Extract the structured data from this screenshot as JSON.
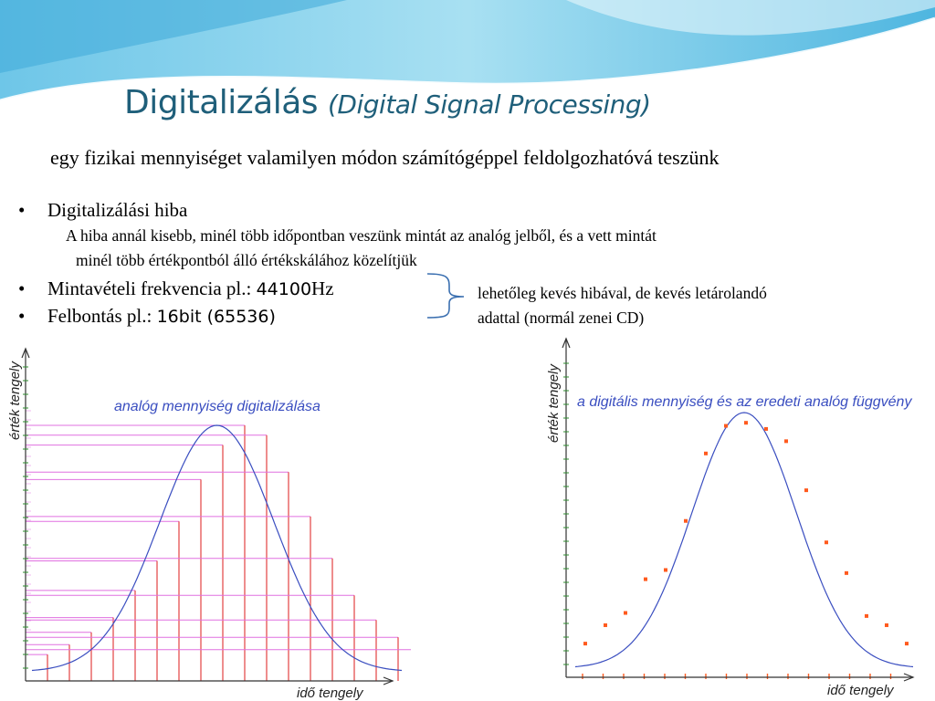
{
  "header": {
    "title": "Digitalizálás",
    "title_paren_open": "(",
    "title_sub": "Digital Signal Processing)"
  },
  "subtitle": "egy fizikai mennyiséget valamilyen módon számítógéppel feldolgozhatóvá teszünk",
  "bullets": {
    "marker": "•",
    "b1": {
      "label": "Digitalizálási hiba"
    },
    "b1_detail_1": "A hiba annál kisebb, minél több időpontban veszünk mintát az analóg jelből, és a vett mintát",
    "b1_detail_2": "minél több értékpontból álló értékskálához közelítjük",
    "b2": {
      "text": "Mintavételi frekvencia  pl.: ",
      "value": "44100",
      "unit": "Hz"
    },
    "b3": {
      "text": "Felbontás pl.: ",
      "value": "16bit (65536)"
    }
  },
  "note": {
    "line1": "lehetőleg kevés hibával, de kevés letárolandó",
    "line2": "adattal (normál zenei CD)"
  },
  "charts": {
    "left": {
      "title": "analóg mennyiség digitalizálása",
      "xlabel": "idő tengely",
      "ylabel": "érték tengely",
      "curve_color": "#3a4ec0",
      "sample_color": "#e03030",
      "level_color": "#e070e0"
    },
    "right": {
      "title": "a digitális mennyiség és az eredeti analóg függvény",
      "xlabel": "idő tengely",
      "ylabel": "érték tengely",
      "curve_color": "#3a4ec0",
      "point_color": "#ff5a1e"
    }
  },
  "chart_data": [
    {
      "type": "line",
      "title": "analóg mennyiség digitalizálása",
      "xlabel": "idő tengely",
      "ylabel": "érték tengely",
      "x": [
        0,
        1,
        2,
        3,
        4,
        5,
        6,
        7,
        8,
        9,
        10,
        11,
        12,
        13,
        14,
        15,
        16,
        17
      ],
      "values": [
        0.07,
        0.11,
        0.16,
        0.22,
        0.33,
        0.45,
        0.61,
        0.78,
        0.92,
        1.0,
        0.96,
        0.81,
        0.63,
        0.46,
        0.31,
        0.21,
        0.14,
        0.09
      ]
    },
    {
      "type": "scatter",
      "title": "a digitális mennyiség és az eredeti analóg függvény",
      "xlabel": "idő tengely",
      "ylabel": "érték tengely",
      "x": [
        0,
        1,
        2,
        3,
        4,
        5,
        6,
        7,
        8,
        9,
        10,
        11,
        12,
        13,
        14,
        15,
        16
      ],
      "values": [
        0.08,
        0.14,
        0.18,
        0.29,
        0.32,
        0.48,
        0.7,
        0.79,
        0.8,
        0.78,
        0.74,
        0.58,
        0.41,
        0.31,
        0.17,
        0.14,
        0.08
      ]
    }
  ]
}
